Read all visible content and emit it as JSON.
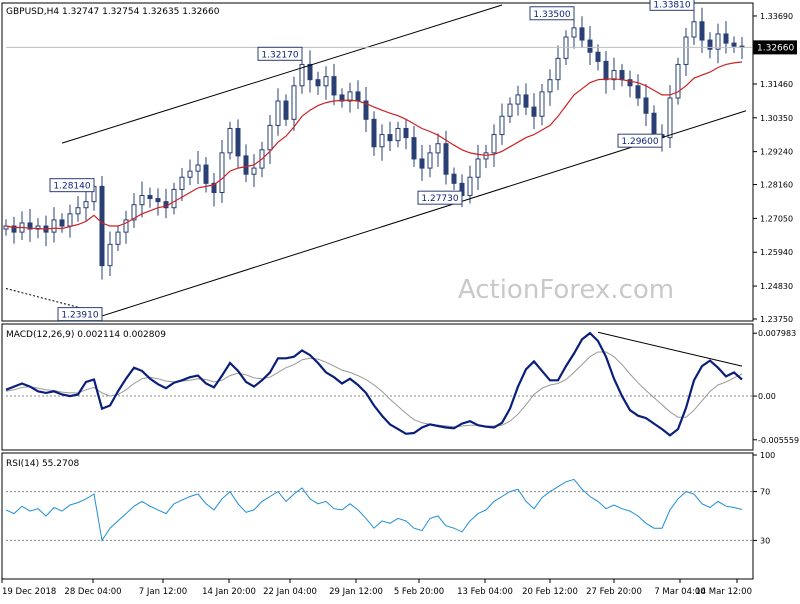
{
  "chart_data": [
    {
      "type": "candlestick",
      "panel": "price",
      "header": "GBPUSD,H4  1.32747 1.32754 1.32635 1.32660",
      "symbol": "GBPUSD",
      "timeframe": "H4",
      "ohlc_last": {
        "open": 1.32747,
        "high": 1.32754,
        "low": 1.32635,
        "close": 1.3266
      },
      "current_price_label": "1.32660",
      "yticks": [
        "1.33690",
        "1.32660",
        "1.31460",
        "1.30350",
        "1.29240",
        "1.28160",
        "1.27050",
        "1.25940",
        "1.24830",
        "1.23750"
      ],
      "ylim": [
        1.2375,
        1.3405
      ],
      "watermark": "ActionForex.com",
      "colors": {
        "candles": "#2a3f73",
        "moving_average": "#cc2222",
        "channel": "#000000",
        "label_border": "#2a3f73"
      },
      "annotations": [
        {
          "label": "1.23910",
          "value": 1.2391,
          "slot": 12
        },
        {
          "label": "1.28140",
          "value": 1.2814,
          "slot": 11
        },
        {
          "label": "1.32170",
          "value": 1.3217,
          "slot": 37
        },
        {
          "label": "1.27730",
          "value": 1.2773,
          "slot": 57
        },
        {
          "label": "1.33500",
          "value": 1.335,
          "slot": 71
        },
        {
          "label": "1.29600",
          "value": 1.296,
          "slot": 82
        },
        {
          "label": "1.33810",
          "value": 1.3381,
          "slot": 86
        }
      ],
      "channel": {
        "lower_start": {
          "slot": 12,
          "value": 1.2385
        },
        "lower_end": {
          "slot": 92,
          "value": 1.3058
        },
        "upper_start": {
          "slot": 7,
          "value": 1.2952
        },
        "upper_end": {
          "slot": 62,
          "value": 1.3405
        }
      },
      "dotted_trend": {
        "start": {
          "slot": 0,
          "value": 1.2475
        },
        "end": {
          "slot": 12,
          "value": 1.2393
        }
      },
      "closes": [
        1.268,
        1.266,
        1.269,
        1.267,
        1.268,
        1.266,
        1.27,
        1.268,
        1.272,
        1.274,
        1.276,
        1.281,
        1.255,
        1.262,
        1.266,
        1.27,
        1.275,
        1.278,
        1.277,
        1.276,
        1.274,
        1.28,
        1.284,
        1.286,
        1.288,
        1.282,
        1.279,
        1.292,
        1.3,
        1.291,
        1.285,
        1.287,
        1.293,
        1.301,
        1.309,
        1.303,
        1.314,
        1.321,
        1.316,
        1.314,
        1.317,
        1.311,
        1.309,
        1.312,
        1.309,
        1.303,
        1.294,
        1.298,
        1.296,
        1.3,
        1.297,
        1.29,
        1.287,
        1.292,
        1.295,
        1.285,
        1.282,
        1.278,
        1.284,
        1.29,
        1.292,
        1.298,
        1.304,
        1.308,
        1.311,
        1.307,
        1.304,
        1.312,
        1.316,
        1.323,
        1.33,
        1.333,
        1.329,
        1.325,
        1.322,
        1.316,
        1.319,
        1.316,
        1.314,
        1.31,
        1.305,
        1.298,
        1.297,
        1.31,
        1.321,
        1.33,
        1.335,
        1.329,
        1.326,
        1.331,
        1.328,
        1.327,
        1.3266
      ],
      "ma": [
        1.268,
        1.2675,
        1.2675,
        1.2673,
        1.2672,
        1.267,
        1.2673,
        1.2672,
        1.2678,
        1.2685,
        1.2695,
        1.2715,
        1.269,
        1.268,
        1.268,
        1.269,
        1.2705,
        1.272,
        1.273,
        1.274,
        1.2745,
        1.276,
        1.2775,
        1.279,
        1.2805,
        1.281,
        1.2815,
        1.2835,
        1.286,
        1.287,
        1.2875,
        1.288,
        1.29,
        1.2925,
        1.2955,
        1.2975,
        1.3005,
        1.304,
        1.306,
        1.3075,
        1.3085,
        1.309,
        1.3092,
        1.3093,
        1.309,
        1.3082,
        1.307,
        1.306,
        1.305,
        1.3042,
        1.303,
        1.3015,
        1.3,
        1.299,
        1.2978,
        1.2962,
        1.2945,
        1.293,
        1.292,
        1.2915,
        1.2912,
        1.2915,
        1.2925,
        1.294,
        1.2955,
        1.297,
        1.298,
        1.2995,
        1.301,
        1.304,
        1.3075,
        1.311,
        1.313,
        1.315,
        1.316,
        1.3162,
        1.3163,
        1.316,
        1.3155,
        1.315,
        1.314,
        1.3125,
        1.311,
        1.311,
        1.312,
        1.314,
        1.3165,
        1.3175,
        1.3185,
        1.32,
        1.321,
        1.3215,
        1.3218
      ]
    },
    {
      "type": "line",
      "panel": "macd",
      "header": "MACD(12,26,9) 0.002114 0.002809",
      "yticks": [
        "0.007983",
        "0.00",
        "-0.005559"
      ],
      "ylim": [
        -0.0066,
        0.0089
      ],
      "colors": {
        "main": "#0a1f7a",
        "signal": "#999999",
        "trend": "#000000"
      },
      "trend_line": {
        "start": {
          "slot": 74,
          "value": 0.0081
        },
        "end": {
          "slot": 92,
          "value": 0.0038
        }
      },
      "series": [
        {
          "values": [
            0.0008,
            0.0012,
            0.0016,
            0.0012,
            0.0006,
            0.0004,
            0.0006,
            0.0002,
            0.0,
            0.0002,
            0.0018,
            0.0021,
            -0.0016,
            -0.0012,
            0.0006,
            0.0022,
            0.0036,
            0.0032,
            0.0022,
            0.0015,
            0.001,
            0.0017,
            0.002,
            0.0024,
            0.0026,
            0.0016,
            0.0011,
            0.0026,
            0.0042,
            0.0032,
            0.0018,
            0.0012,
            0.002,
            0.003,
            0.0048,
            0.0048,
            0.005,
            0.0058,
            0.0052,
            0.0042,
            0.003,
            0.0024,
            0.0016,
            0.0022,
            0.0014,
            0.0004,
            -0.0012,
            -0.0025,
            -0.0036,
            -0.0042,
            -0.0048,
            -0.0047,
            -0.004,
            -0.0036,
            -0.0038,
            -0.004,
            -0.0041,
            -0.0035,
            -0.0032,
            -0.0037,
            -0.0039,
            -0.004,
            -0.0034,
            -0.0016,
            0.0012,
            0.0034,
            0.0044,
            0.0032,
            0.002,
            0.002,
            0.0038,
            0.0054,
            0.0072,
            0.008,
            0.007,
            0.005,
            0.0022,
            0.0,
            -0.0018,
            -0.0025,
            -0.0028,
            -0.0035,
            -0.0042,
            -0.005,
            -0.0042,
            -0.0015,
            0.002,
            0.0038,
            0.0045,
            0.0036,
            0.0025,
            0.003,
            0.0021
          ]
        },
        {
          "values": [
            0.0006,
            0.0008,
            0.0011,
            0.0012,
            0.001,
            0.0008,
            0.0007,
            0.0005,
            0.0004,
            0.0004,
            0.0008,
            0.0011,
            0.0004,
            0.0,
            0.0002,
            0.0008,
            0.0016,
            0.0022,
            0.0024,
            0.0022,
            0.0019,
            0.0018,
            0.0019,
            0.002,
            0.0022,
            0.0021,
            0.0018,
            0.002,
            0.0026,
            0.0029,
            0.0027,
            0.0023,
            0.0022,
            0.0024,
            0.003,
            0.0036,
            0.004,
            0.0046,
            0.0048,
            0.0047,
            0.0043,
            0.0038,
            0.0033,
            0.003,
            0.0026,
            0.0021,
            0.0014,
            0.0006,
            -0.0004,
            -0.0013,
            -0.0022,
            -0.003,
            -0.0034,
            -0.0036,
            -0.0037,
            -0.0038,
            -0.0039,
            -0.0038,
            -0.0037,
            -0.0037,
            -0.0038,
            -0.0038,
            -0.0037,
            -0.0032,
            -0.0023,
            -0.0011,
            0.0002,
            0.001,
            0.0014,
            0.0016,
            0.0021,
            0.003,
            0.004,
            0.005,
            0.0056,
            0.0056,
            0.005,
            0.004,
            0.0028,
            0.0017,
            0.0007,
            -0.0002,
            -0.0011,
            -0.002,
            -0.0027,
            -0.0027,
            -0.0018,
            -0.0006,
            0.0006,
            0.0014,
            0.0018,
            0.0023,
            0.0028
          ]
        }
      ]
    },
    {
      "type": "line",
      "panel": "rsi",
      "header": "RSI(14) 55.2708",
      "yticks": [
        "100",
        "70",
        "30"
      ],
      "ylim": [
        0,
        100
      ],
      "levels": [
        70,
        30
      ],
      "colors": {
        "main": "#1f8fd6",
        "levels": "#888888"
      },
      "series": [
        {
          "values": [
            55,
            52,
            58,
            54,
            56,
            50,
            57,
            54,
            59,
            61,
            64,
            68,
            30,
            40,
            46,
            52,
            58,
            62,
            58,
            55,
            52,
            60,
            63,
            66,
            68,
            60,
            55,
            64,
            70,
            60,
            53,
            55,
            62,
            66,
            70,
            62,
            68,
            73,
            64,
            60,
            62,
            56,
            55,
            60,
            55,
            48,
            40,
            46,
            44,
            48,
            46,
            40,
            38,
            48,
            50,
            42,
            40,
            37,
            46,
            52,
            55,
            62,
            66,
            70,
            72,
            62,
            56,
            65,
            70,
            74,
            78,
            80,
            72,
            66,
            62,
            56,
            59,
            56,
            54,
            50,
            44,
            40,
            40,
            55,
            64,
            70,
            68,
            60,
            57,
            62,
            58,
            57,
            55.3
          ]
        }
      ]
    }
  ],
  "x_tick_labels": [
    "19 Dec 2018",
    "28 Dec 04:00",
    "7 Jan 12:00",
    "14 Jan 20:00",
    "22 Jan 04:00",
    "29 Jan 12:00",
    "5 Feb 20:00",
    "13 Feb 04:00",
    "20 Feb 12:00",
    "27 Feb 20:00",
    "7 Mar 04:00",
    "14 Mar 12:00"
  ]
}
